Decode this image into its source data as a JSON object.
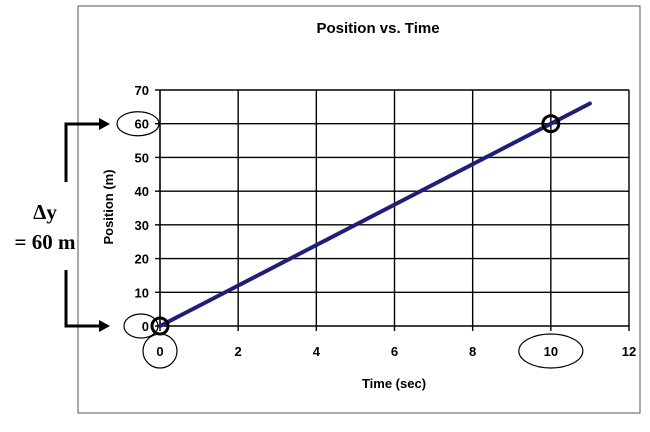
{
  "chart_data": {
    "type": "line",
    "title": "Position vs. Time",
    "xlabel": "Time (sec)",
    "ylabel": "Position (m)",
    "xlim": [
      0,
      12
    ],
    "ylim": [
      0,
      70
    ],
    "x_ticks": [
      0,
      2,
      4,
      6,
      8,
      10,
      12
    ],
    "y_ticks": [
      0,
      10,
      20,
      30,
      40,
      50,
      60,
      70
    ],
    "grid": true,
    "series": [
      {
        "x": [
          0,
          11
        ],
        "y": [
          0,
          66
        ],
        "color": "#1f1f7a"
      }
    ],
    "markers": [
      {
        "x": 0,
        "y": 0
      },
      {
        "x": 10,
        "y": 60
      }
    ],
    "highlighted_x_ticks": [
      0,
      10
    ],
    "highlighted_y_ticks": [
      0,
      60
    ],
    "annotation": {
      "line1": "Δy",
      "line2": "= 60 m"
    }
  }
}
